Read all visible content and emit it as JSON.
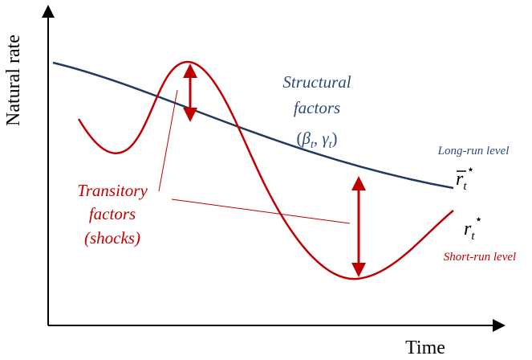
{
  "axes": {
    "y_label": "Natural rate",
    "x_label": "Time"
  },
  "structural": {
    "lines": [
      "Structural",
      "factors"
    ],
    "math": {
      "open": "(",
      "beta": "β",
      "sub1": "t",
      "sep": ", ",
      "gamma": "γ",
      "sub2": "t",
      "close": ")"
    }
  },
  "long_run": {
    "label": "Long-run level",
    "symbol": "r",
    "subscript": "t",
    "superscript": "⋆"
  },
  "short_run": {
    "label": "Short-run level",
    "symbol": "r",
    "subscript": "t",
    "superscript": "⋆"
  },
  "transitory": {
    "lines": [
      "Transitory",
      "factors",
      "(shocks)"
    ]
  }
}
